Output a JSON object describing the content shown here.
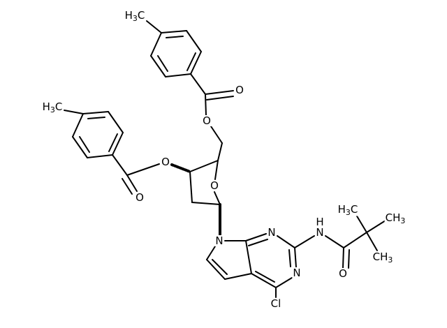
{
  "labels": [
    [
      "H",
      "3",
      "C"
    ],
    [
      "O"
    ],
    [
      "O"
    ],
    [
      "H",
      "3",
      "C"
    ],
    [
      "O"
    ],
    [
      "O"
    ],
    [
      "O"
    ],
    [
      "N"
    ],
    [
      "N"
    ],
    [
      "N"
    ],
    [
      "H"
    ],
    [
      "N"
    ],
    [
      "H",
      "3",
      "C"
    ],
    [
      "C",
      "H",
      "3"
    ],
    [
      "C",
      "H",
      "3"
    ],
    [
      "O"
    ],
    [
      "Cl"
    ]
  ]
}
